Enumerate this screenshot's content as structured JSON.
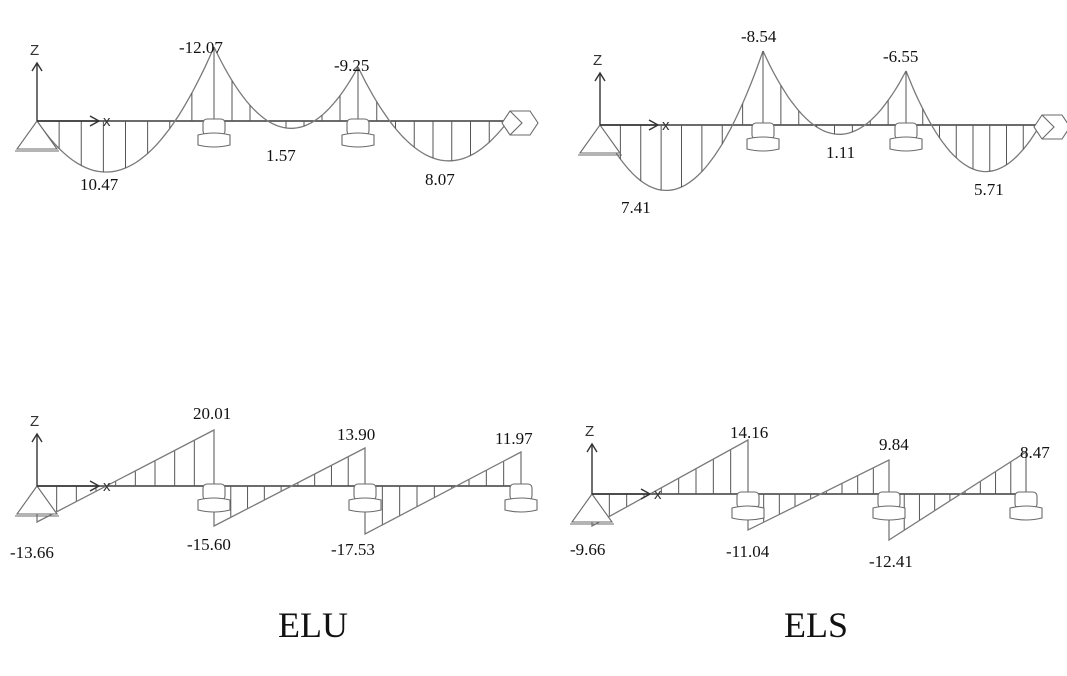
{
  "axis_labels": {
    "z": "Z",
    "x": "x"
  },
  "captions": {
    "left": "ELU",
    "right": "ELS"
  },
  "diagrams": {
    "moment_elu": {
      "span1_max": "10.47",
      "support1": "-12.07",
      "span2_max": "1.57",
      "support2": "-9.25",
      "span3_max": "8.07"
    },
    "moment_els": {
      "span1_max": "7.41",
      "support1": "-8.54",
      "span2_max": "1.11",
      "support2": "-6.55",
      "span3_max": "5.71"
    },
    "shear_elu": {
      "left_end": "-13.66",
      "support1_left": "20.01",
      "support1_right": "-15.60",
      "support2_left": "13.90",
      "support2_right": "-17.53",
      "right_end": "11.97"
    },
    "shear_els": {
      "left_end": "-9.66",
      "support1_left": "14.16",
      "support1_right": "-11.04",
      "support2_left": "9.84",
      "support2_right": "-12.41",
      "right_end": "8.47"
    }
  }
}
